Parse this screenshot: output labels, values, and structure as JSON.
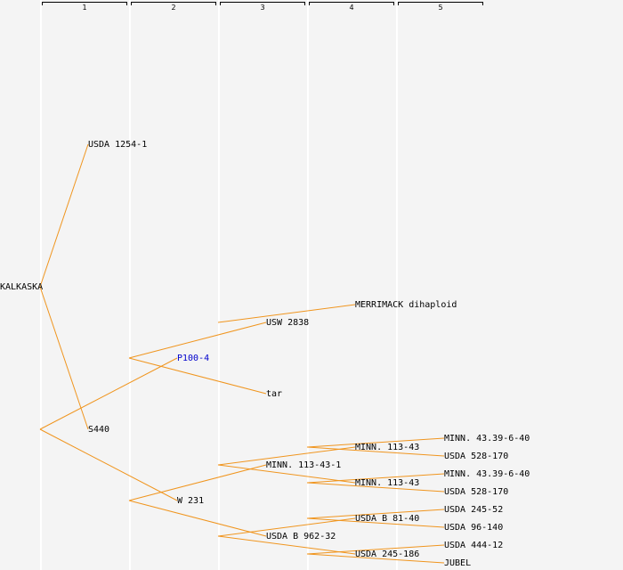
{
  "columns": [
    "1",
    "2",
    "3",
    "4",
    "5"
  ],
  "colors": {
    "edge": "#f0951e",
    "link": "#0000cc",
    "background": "#f4f4f4"
  },
  "nodes": {
    "kalkaska": "KALKASKA",
    "usda_1254_1": "USDA 1254-1",
    "s440": "S440",
    "p100_4": "P100-4",
    "w231": "W 231",
    "usw_2838": "USW 2838",
    "tar": "tar",
    "minn_113_43_1": "MINN. 113-43-1",
    "usda_b_962_32": "USDA B 962-32",
    "merrimack": "MERRIMACK dihaploid",
    "minn_113_43_a": "MINN. 113-43",
    "minn_113_43_b": "MINN. 113-43",
    "usda_b_81_40": "USDA B 81-40",
    "usda_245_186": "USDA 245-186",
    "minn_43_39_a": "MINN. 43.39-6-40",
    "usda_528_170_a": "USDA 528-170",
    "minn_43_39_b": "MINN. 43.39-6-40",
    "usda_528_170_b": "USDA 528-170",
    "usda_245_52": "USDA 245-52",
    "usda_96_140": "USDA 96-140",
    "usda_444_12": "USDA 444-12",
    "jubel": "JUBEL"
  },
  "edges": [
    [
      "kalkaska",
      "usda_1254_1"
    ],
    [
      "kalkaska",
      "s440"
    ],
    [
      "s440",
      "p100_4"
    ],
    [
      "s440",
      "w231"
    ],
    [
      "p100_4",
      "usw_2838"
    ],
    [
      "p100_4",
      "tar"
    ],
    [
      "w231",
      "minn_113_43_1"
    ],
    [
      "w231",
      "usda_b_962_32"
    ],
    [
      "usw_2838",
      "merrimack"
    ],
    [
      "minn_113_43_1",
      "minn_113_43_a"
    ],
    [
      "minn_113_43_1",
      "minn_113_43_b"
    ],
    [
      "usda_b_962_32",
      "usda_b_81_40"
    ],
    [
      "usda_b_962_32",
      "usda_245_186"
    ],
    [
      "minn_113_43_a",
      "minn_43_39_a"
    ],
    [
      "minn_113_43_a",
      "usda_528_170_a"
    ],
    [
      "minn_113_43_b",
      "minn_43_39_b"
    ],
    [
      "minn_113_43_b",
      "usda_528_170_b"
    ],
    [
      "usda_b_81_40",
      "usda_245_52"
    ],
    [
      "usda_b_81_40",
      "usda_96_140"
    ],
    [
      "usda_245_186",
      "usda_444_12"
    ],
    [
      "usda_245_186",
      "jubel"
    ]
  ]
}
